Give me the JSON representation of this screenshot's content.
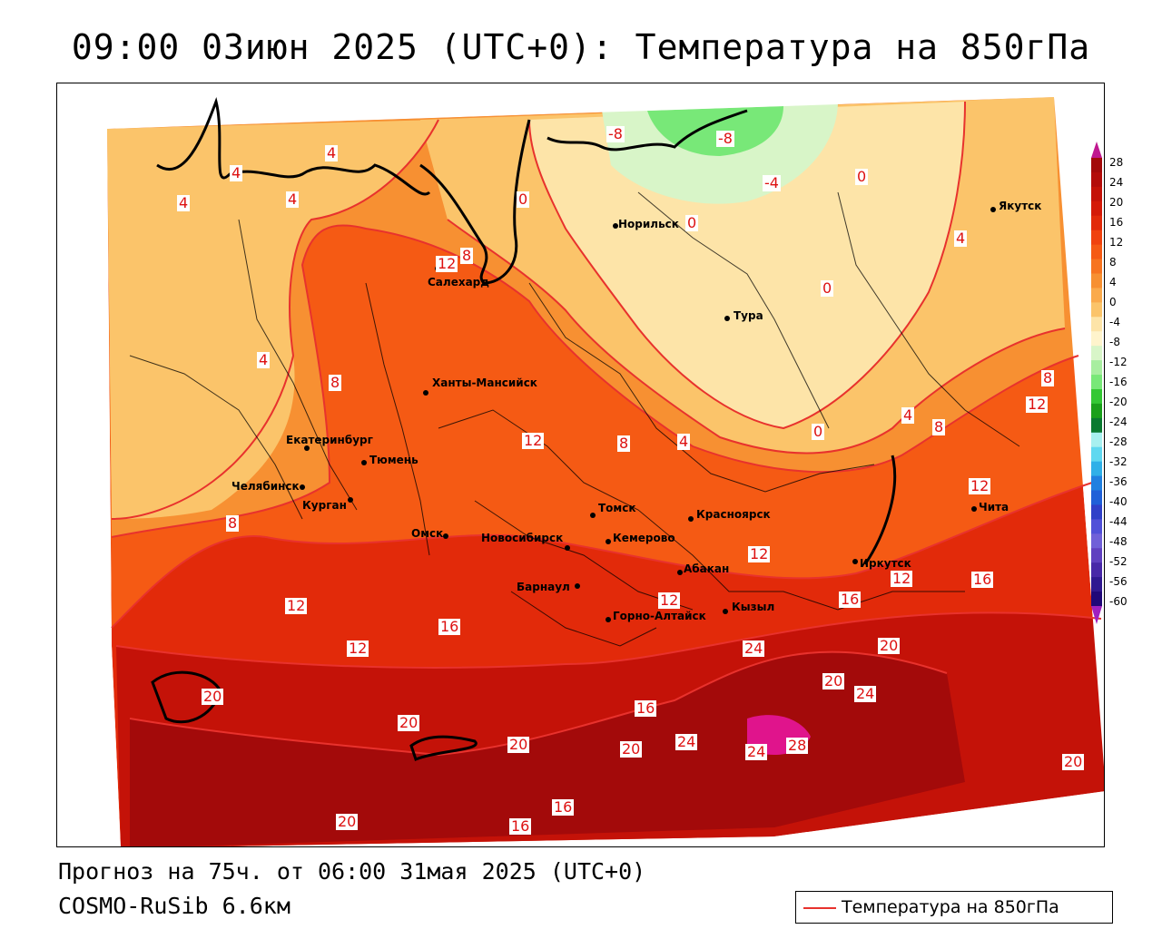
{
  "title": "09:00 03июн 2025 (UTC+0): Температура на 850гПа",
  "forecast_line": "Прогноз на 75ч. от 06:00 31мая 2025 (UTC+0)",
  "model_line": "COSMO-RuSib 6.6км",
  "legend_label": "Температура на 850гПа",
  "colors": {
    "contour_line": "#e8322d",
    "t28": "#e0148c",
    "t24": "#a30a0a",
    "t20": "#c41208",
    "t16": "#e22a0a",
    "t12": "#f55a14",
    "t8": "#f79032",
    "t4": "#fbc46a",
    "t0": "#fde4a8",
    "tm4": "#d8f5c8",
    "tm8": "#78e878"
  },
  "color_scale": {
    "ticks": [
      "28",
      "24",
      "20",
      "16",
      "12",
      "8",
      "4",
      "0",
      "-4",
      "-8",
      "-12",
      "-16",
      "-20",
      "-24",
      "-28",
      "-32",
      "-36",
      "-40",
      "-44",
      "-48",
      "-52",
      "-56",
      "-60"
    ],
    "swatches": [
      "#a30a0a",
      "#b30c0a",
      "#c41208",
      "#d41a08",
      "#e22a0a",
      "#f0420e",
      "#f55a14",
      "#f77420",
      "#f79032",
      "#faaa4c",
      "#fbc46a",
      "#fde4a8",
      "#fff4cc",
      "#d8f5c8",
      "#a8eea0",
      "#78e878",
      "#34c834",
      "#1aa01a",
      "#0a7a30",
      "#a8f0f0",
      "#60d8f0",
      "#30b0e8",
      "#2080e0",
      "#2060d8",
      "#3040c8",
      "#5050d8",
      "#7060d8",
      "#6040c0",
      "#4828a8",
      "#301890",
      "#200878"
    ]
  },
  "cities": [
    {
      "name": "Якутск"
    },
    {
      "name": "Норильск"
    },
    {
      "name": "Салехард"
    },
    {
      "name": "Тура"
    },
    {
      "name": "Ханты-Мансийск"
    },
    {
      "name": "Екатеринбург"
    },
    {
      "name": "Тюмень"
    },
    {
      "name": "Челябинск"
    },
    {
      "name": "Курган"
    },
    {
      "name": "Омск"
    },
    {
      "name": "Новосибирск"
    },
    {
      "name": "Томск"
    },
    {
      "name": "Кемерово"
    },
    {
      "name": "Красноярск"
    },
    {
      "name": "Абакан"
    },
    {
      "name": "Барнаул"
    },
    {
      "name": "Горно-Алтайск"
    },
    {
      "name": "Кызыл"
    },
    {
      "name": "Иркутск"
    },
    {
      "name": "Чита"
    }
  ],
  "contour_labels": [
    "-8",
    "-8",
    "-4",
    "4",
    "4",
    "4",
    "4",
    "0",
    "0",
    "0",
    "0",
    "4",
    "12",
    "8",
    "4",
    "8",
    "8",
    "12",
    "8",
    "4",
    "0",
    "4",
    "8",
    "12",
    "8",
    "12",
    "12",
    "12",
    "12",
    "16",
    "16",
    "16",
    "20",
    "24",
    "20",
    "24",
    "20",
    "20",
    "20",
    "16",
    "24",
    "24",
    "28",
    "20",
    "20",
    "16",
    "16",
    "20",
    "12",
    "12"
  ]
}
